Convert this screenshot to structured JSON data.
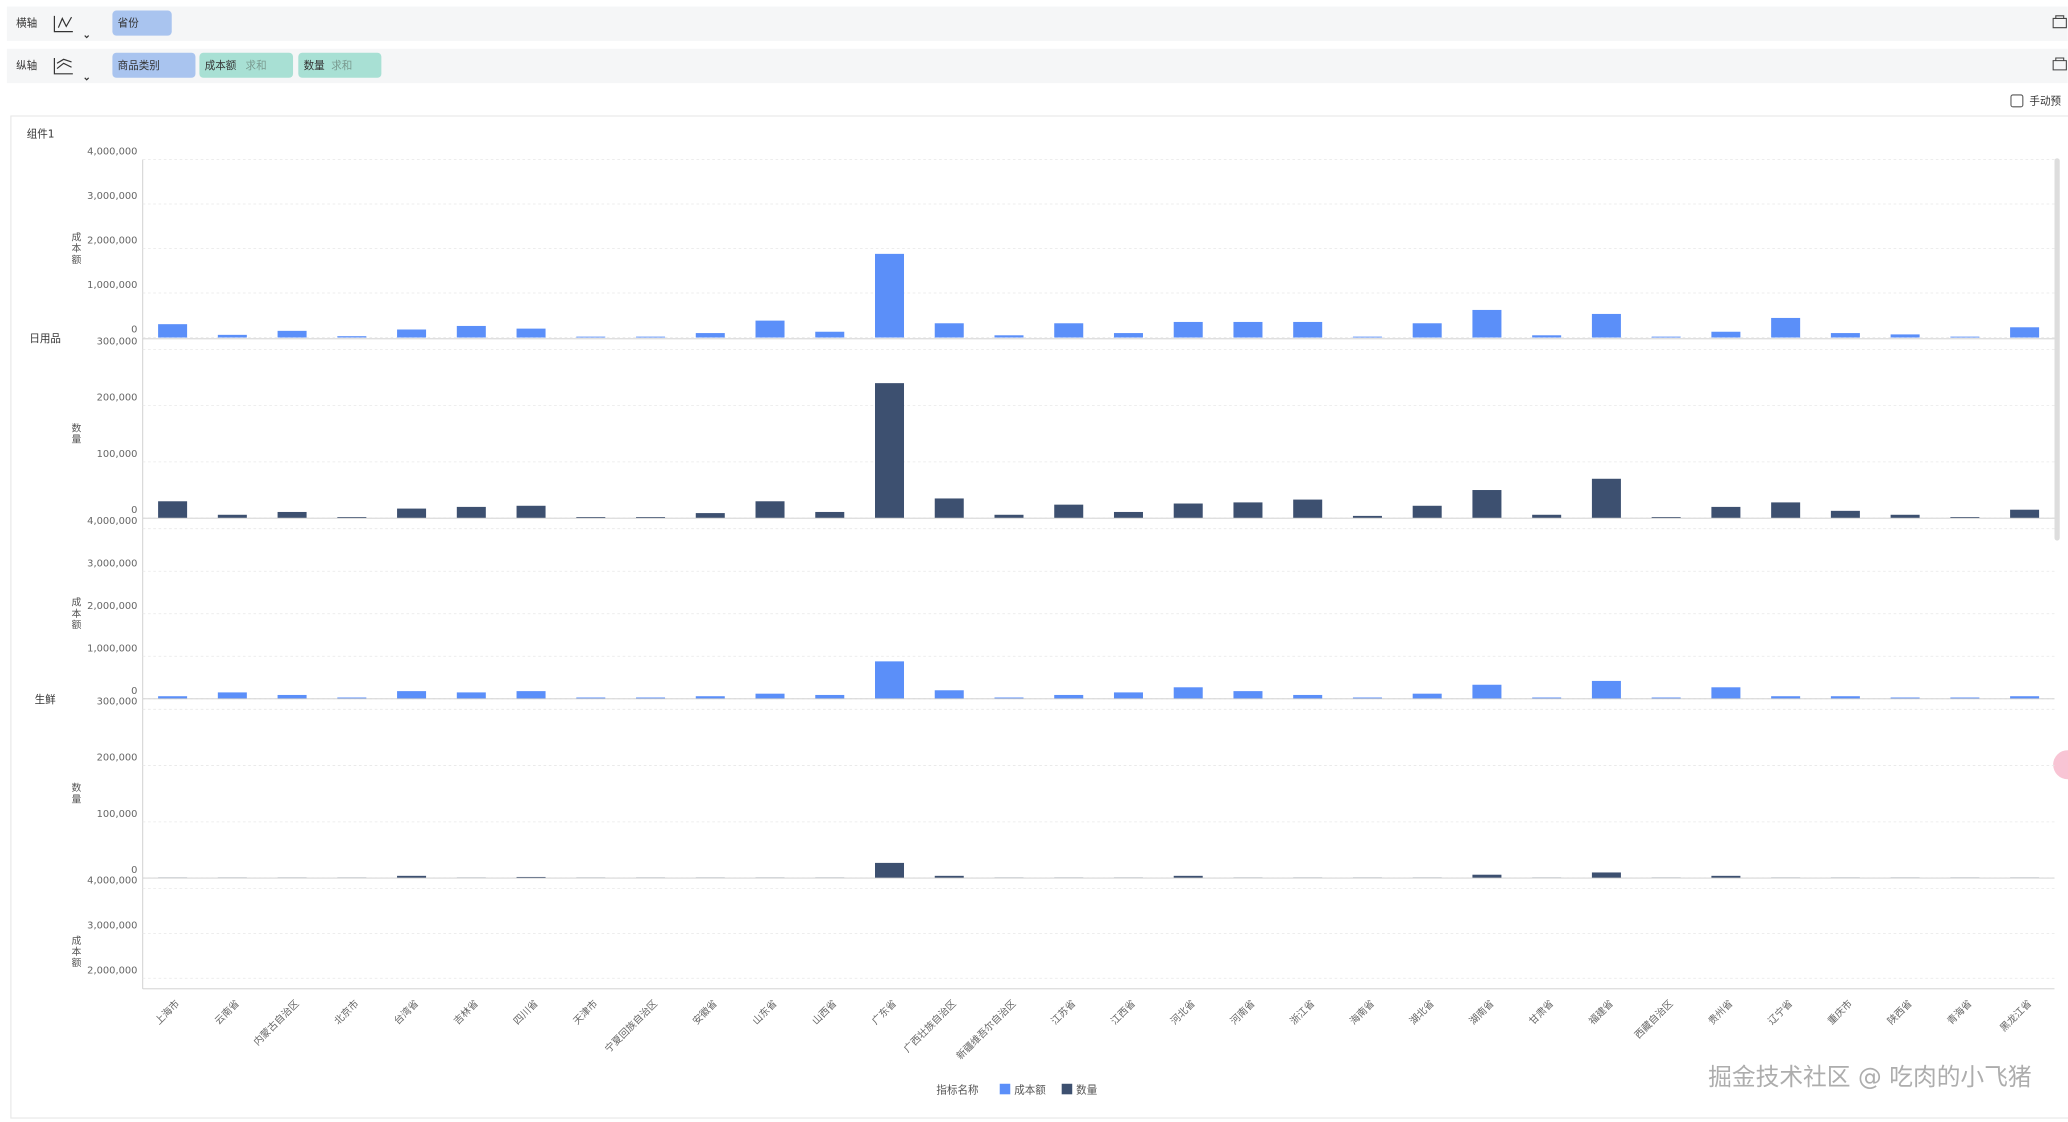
{
  "toolbar": {
    "x_axis_label": "横轴",
    "y_axis_label": "纵轴",
    "x_fields": [
      {
        "name": "省份"
      }
    ],
    "y_fields": [
      {
        "name": "商品类别"
      },
      {
        "name": "成本额",
        "agg": "求和"
      },
      {
        "name": "数量",
        "agg": "求和"
      }
    ],
    "manual_preview": "手动预"
  },
  "component_title": "组件1",
  "watermark": "掘金技术社区 @ 吃肉的小飞猪",
  "chart_data": {
    "type": "bar",
    "categories": [
      "上海市",
      "云南省",
      "内蒙古自治区",
      "北京市",
      "台湾省",
      "吉林省",
      "四川省",
      "天津市",
      "宁夏回族自治区",
      "安徽省",
      "山东省",
      "山西省",
      "广东省",
      "广西壮族自治区",
      "新疆维吾尔自治区",
      "江苏省",
      "江西省",
      "河北省",
      "河南省",
      "浙江省",
      "海南省",
      "湖北省",
      "湖南省",
      "甘肃省",
      "福建省",
      "西藏自治区",
      "贵州省",
      "辽宁省",
      "重庆市",
      "陕西省",
      "青海省",
      "黑龙江省"
    ],
    "legend_title": "指标名称",
    "legend": [
      {
        "name": "成本额",
        "color": "#5b8ff9"
      },
      {
        "name": "数量",
        "color": "#3d5070"
      }
    ],
    "grid": true,
    "panels": [
      {
        "group": "日用品",
        "label": "成本额",
        "color": "#5b8ff9",
        "ylim": [
          0,
          4000000
        ],
        "yticks": [
          0,
          {
            "value": 1000000,
            "label": "1,000,000"
          },
          {
            "value": 2000000,
            "label": "2,000,000"
          },
          {
            "value": 3000000,
            "label": "3,000,000"
          },
          {
            "value": 4000000,
            "label": "4,000,000"
          }
        ],
        "values": [
          300000,
          60000,
          150000,
          30000,
          180000,
          260000,
          200000,
          20000,
          20000,
          100000,
          380000,
          130000,
          1880000,
          320000,
          50000,
          320000,
          100000,
          350000,
          350000,
          350000,
          20000,
          320000,
          620000,
          50000,
          530000,
          20000,
          130000,
          440000,
          100000,
          70000,
          20000,
          230000
        ]
      },
      {
        "label": "数量",
        "color": "#3d5070",
        "ylim": [
          0,
          300000
        ],
        "yticks": [
          0,
          {
            "value": 100000,
            "label": "100,000"
          },
          {
            "value": 200000,
            "label": "200,000"
          },
          {
            "value": 300000,
            "label": "300,000"
          }
        ],
        "values": [
          30000,
          6000,
          11000,
          2000,
          17000,
          20000,
          22000,
          2000,
          2000,
          9000,
          30000,
          11000,
          240000,
          35000,
          6000,
          24000,
          11000,
          26000,
          28000,
          33000,
          4000,
          22000,
          50000,
          6000,
          70000,
          2000,
          20000,
          28000,
          13000,
          6000,
          2000,
          15000
        ]
      },
      {
        "group": "生鲜",
        "label": "成本额",
        "color": "#5b8ff9",
        "ylim": [
          0,
          4000000
        ],
        "yticks": [
          0,
          {
            "value": 1000000,
            "label": "1,000,000"
          },
          {
            "value": 2000000,
            "label": "2,000,000"
          },
          {
            "value": 3000000,
            "label": "3,000,000"
          },
          {
            "value": 4000000,
            "label": "4,000,000"
          }
        ],
        "values": [
          60000,
          150000,
          90000,
          30000,
          180000,
          150000,
          180000,
          30000,
          30000,
          60000,
          120000,
          90000,
          880000,
          200000,
          30000,
          90000,
          150000,
          270000,
          180000,
          90000,
          30000,
          120000,
          330000,
          30000,
          420000,
          30000,
          270000,
          60000,
          60000,
          30000,
          30000,
          60000
        ]
      },
      {
        "label": "数量",
        "color": "#3d5070",
        "ylim": [
          0,
          300000
        ],
        "yticks": [
          0,
          {
            "value": 100000,
            "label": "100,000"
          },
          {
            "value": 200000,
            "label": "200,000"
          },
          {
            "value": 300000,
            "label": "300,000"
          }
        ],
        "values": [
          1000,
          1000,
          1000,
          1000,
          4000,
          1000,
          2000,
          1000,
          1000,
          1000,
          1000,
          1000,
          27000,
          4000,
          1000,
          1000,
          1000,
          4000,
          1000,
          1000,
          1000,
          1000,
          6000,
          1000,
          10000,
          1000,
          4000,
          1000,
          1000,
          1000,
          1000,
          1000
        ]
      },
      {
        "label": "成本额",
        "color": "#5b8ff9",
        "ylim": [
          0,
          4000000
        ],
        "yticks": [
          {
            "value": 2000000,
            "label": "2,000,000"
          },
          {
            "value": 3000000,
            "label": "3,000,000"
          },
          {
            "value": 4000000,
            "label": "4,000,000"
          }
        ]
      }
    ]
  }
}
